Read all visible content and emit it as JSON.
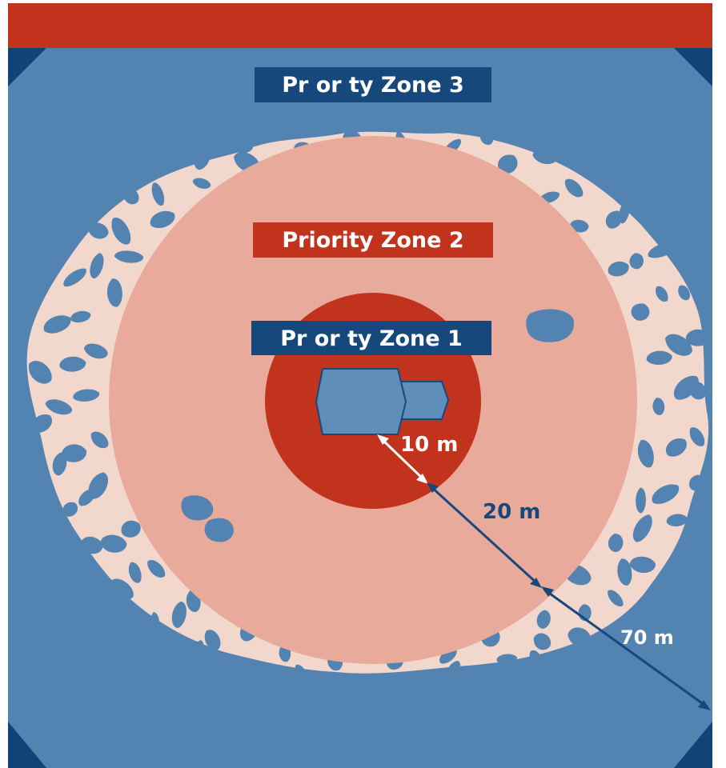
{
  "colors": {
    "background": "#ffffff",
    "top_bar": "#c1331d",
    "corner_dark": "#104478",
    "outer_field": "#5383b0",
    "speckle_light": "#f2d7cd",
    "speckle_blob": "#5383b0",
    "zone2_fill": "#e8aa9a",
    "zone1_fill": "#c1331d",
    "building_fill": "#5f8fb9",
    "building_outline": "#17487b",
    "label_dark_bg": "#17487b",
    "label_red_bg": "#c1331d",
    "label_text": "#ffffff",
    "arrow_dark": "#17487b",
    "arrow_white": "#ffffff",
    "distance_20_color": "#17487b",
    "distance_70_color": "#ffffff",
    "distance_10_color": "#ffffff"
  },
  "zones": {
    "zone3_label": "Pr or ty Zone 3",
    "zone2_label": "Priority Zone 2",
    "zone1_label": "Pr or ty Zone 1"
  },
  "distances": {
    "d10": "10 m",
    "d20": "20 m",
    "d70": "70 m"
  }
}
